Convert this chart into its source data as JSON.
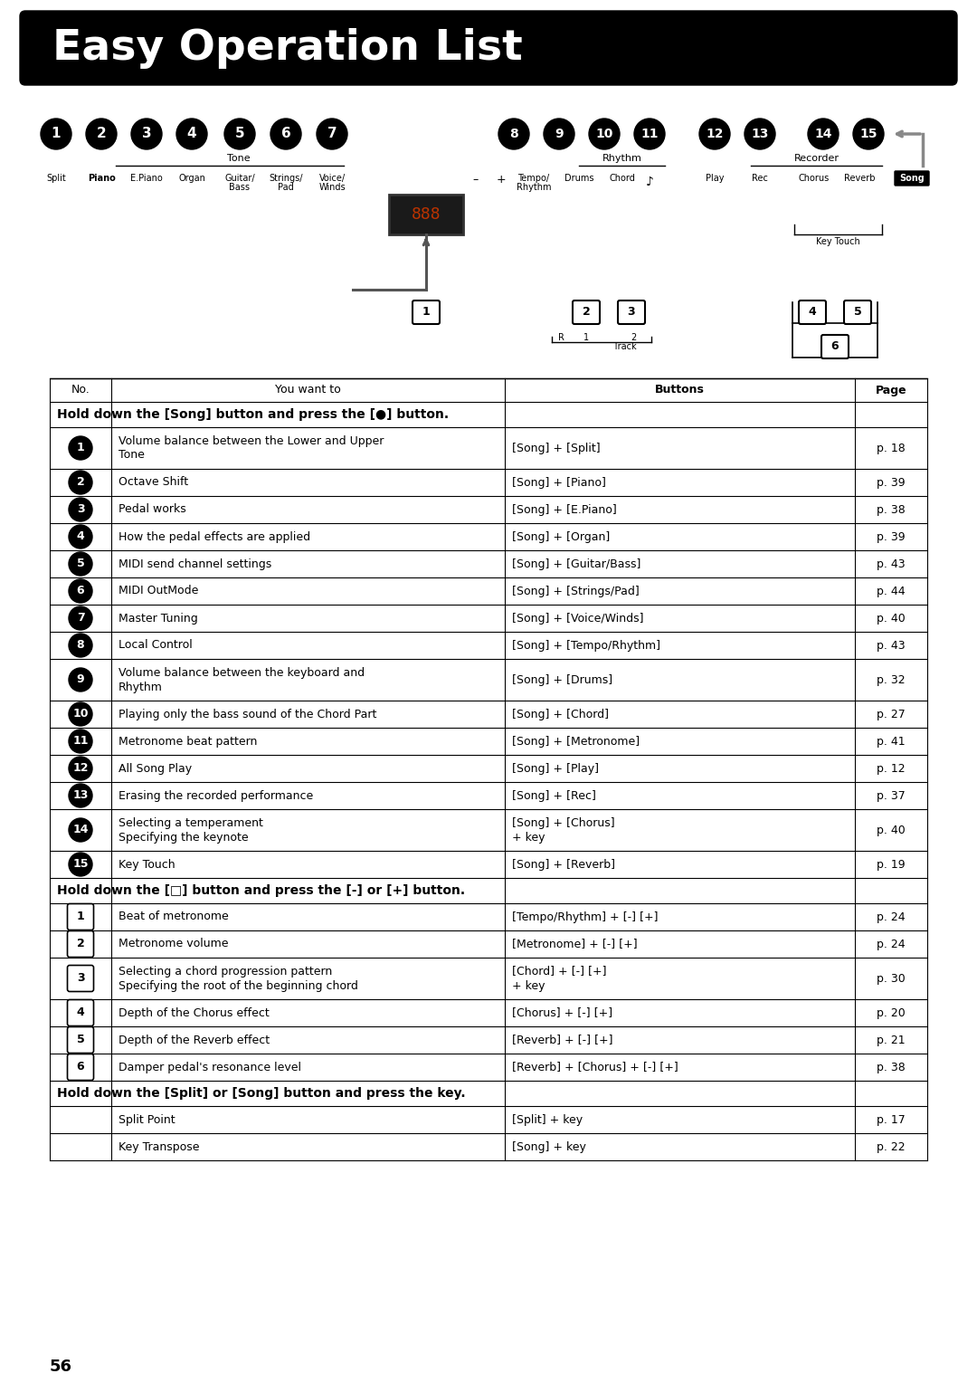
{
  "title": "Easy Operation List",
  "page_number": "56",
  "bg_color": "#ffffff",
  "table_header": [
    "No.",
    "You want to",
    "Buttons",
    "Page"
  ],
  "section1_header": "Hold down the [Song] button and press the [●] button.",
  "section1_rows": [
    {
      "no": "1",
      "desc": "Volume balance between the Lower and Upper\nTone",
      "buttons": "[Song] + [Split]",
      "page": "p. 18",
      "tall": true
    },
    {
      "no": "2",
      "desc": "Octave Shift",
      "buttons": "[Song] + [Piano]",
      "page": "p. 39",
      "tall": false
    },
    {
      "no": "3",
      "desc": "Pedal works",
      "buttons": "[Song] + [E.Piano]",
      "page": "p. 38",
      "tall": false
    },
    {
      "no": "4",
      "desc": "How the pedal effects are applied",
      "buttons": "[Song] + [Organ]",
      "page": "p. 39",
      "tall": false
    },
    {
      "no": "5",
      "desc": "MIDI send channel settings",
      "buttons": "[Song] + [Guitar/Bass]",
      "page": "p. 43",
      "tall": false
    },
    {
      "no": "6",
      "desc": "MIDI OutMode",
      "buttons": "[Song] + [Strings/Pad]",
      "page": "p. 44",
      "tall": false
    },
    {
      "no": "7",
      "desc": "Master Tuning",
      "buttons": "[Song] + [Voice/Winds]",
      "page": "p. 40",
      "tall": false
    },
    {
      "no": "8",
      "desc": "Local Control",
      "buttons": "[Song] + [Tempo/Rhythm]",
      "page": "p. 43",
      "tall": false
    },
    {
      "no": "9",
      "desc": "Volume balance between the keyboard and\nRhythm",
      "buttons": "[Song] + [Drums]",
      "page": "p. 32",
      "tall": true
    },
    {
      "no": "10",
      "desc": "Playing only the bass sound of the Chord Part",
      "buttons": "[Song] + [Chord]",
      "page": "p. 27",
      "tall": false
    },
    {
      "no": "11",
      "desc": "Metronome beat pattern",
      "buttons": "[Song] + [Metronome]",
      "page": "p. 41",
      "tall": false
    },
    {
      "no": "12",
      "desc": "All Song Play",
      "buttons": "[Song] + [Play]",
      "page": "p. 12",
      "tall": false
    },
    {
      "no": "13",
      "desc": "Erasing the recorded performance",
      "buttons": "[Song] + [Rec]",
      "page": "p. 37",
      "tall": false
    },
    {
      "no": "14",
      "desc": "Selecting a temperament\nSpecifying the keynote",
      "buttons": "[Song] + [Chorus]\n+ key",
      "page": "p. 40",
      "tall": true
    },
    {
      "no": "15",
      "desc": "Key Touch",
      "buttons": "[Song] + [Reverb]",
      "page": "p. 19",
      "tall": false
    }
  ],
  "section2_header": "Hold down the [□] button and press the [-] or [+] button.",
  "section2_rows": [
    {
      "no": "1",
      "desc": "Beat of metronome",
      "buttons": "[Tempo/Rhythm] + [-] [+]",
      "page": "p. 24",
      "tall": false
    },
    {
      "no": "2",
      "desc": "Metronome volume",
      "buttons": "[Metronome] + [-] [+]",
      "page": "p. 24",
      "tall": false
    },
    {
      "no": "3",
      "desc": "Selecting a chord progression pattern\nSpecifying the root of the beginning chord",
      "buttons": "[Chord] + [-] [+]\n+ key",
      "page": "p. 30",
      "tall": true
    },
    {
      "no": "4",
      "desc": "Depth of the Chorus effect",
      "buttons": "[Chorus] + [-] [+]",
      "page": "p. 20",
      "tall": false
    },
    {
      "no": "5",
      "desc": "Depth of the Reverb effect",
      "buttons": "[Reverb] + [-] [+]",
      "page": "p. 21",
      "tall": false
    },
    {
      "no": "6",
      "desc": "Damper pedal's resonance level",
      "buttons": "[Reverb] + [Chorus] + [-] [+]",
      "page": "p. 38",
      "tall": false
    }
  ],
  "section3_header": "Hold down the [Split] or [Song] button and press the key.",
  "section3_rows": [
    {
      "no": "",
      "desc": "Split Point",
      "buttons": "[Split] + key",
      "page": "p. 17"
    },
    {
      "no": "",
      "desc": "Key Transpose",
      "buttons": "[Song] + key",
      "page": "p. 22"
    }
  ],
  "diag_labels_left": [
    "Split",
    "Piano",
    "E.Piano",
    "Organ",
    "Guitar/\nBass",
    "Strings/\nPad",
    "Voice/\nWinds"
  ],
  "diag_piano_bold": 1,
  "diag_labels_right": [
    "Tempo/\nRhythm",
    "Drums",
    "Chord",
    "",
    "Play",
    "Rec",
    "Chorus",
    "Reverb",
    "Song"
  ],
  "diag_tone_label": "Tone",
  "diag_rhythm_label": "Rhythm",
  "diag_recorder_label": "Recorder"
}
